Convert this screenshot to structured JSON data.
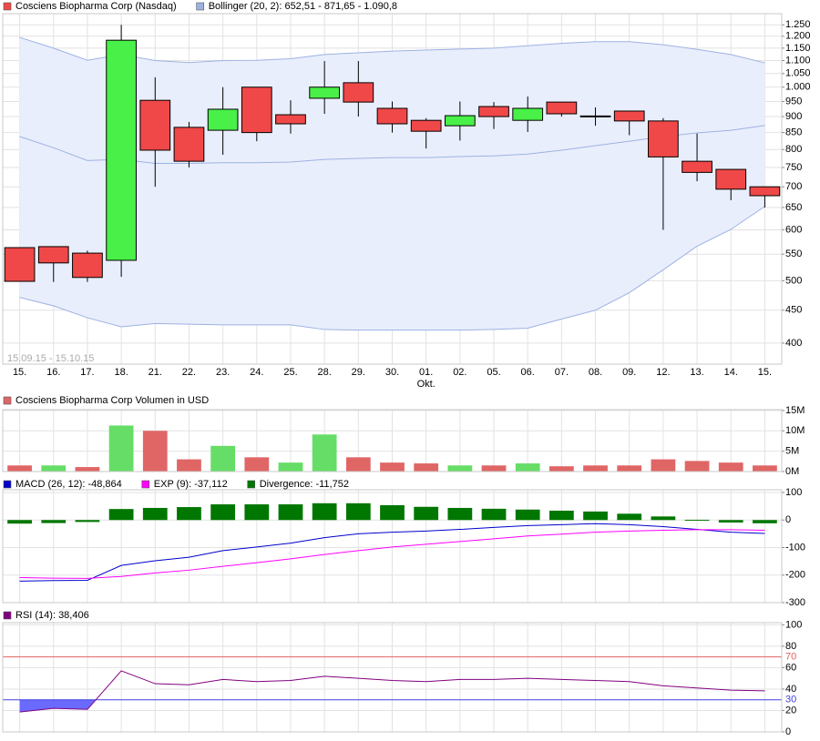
{
  "chart_data": [
    {
      "type": "candlestick",
      "log_scale": true,
      "grid": true,
      "period": "15.09.15 - 15.10.15",
      "categories": [
        "15.",
        "16.",
        "17.",
        "18.",
        "21.",
        "22.",
        "23.",
        "24.",
        "25.",
        "28.",
        "29.",
        "30.",
        "01.",
        "02.",
        "05.",
        "06.",
        "07.",
        "08.",
        "09.",
        "12.",
        "13.",
        "14.",
        "15."
      ],
      "annotations": [
        {
          "text": "Okt.",
          "at": "01."
        }
      ],
      "ylim": [
        371,
        1301
      ],
      "yticks": [
        400,
        450,
        500,
        550,
        600,
        650,
        700,
        750,
        800,
        850,
        900,
        950,
        {
          "value": 1000,
          "label": "1.000"
        },
        {
          "value": 1050,
          "label": "1.050"
        },
        {
          "value": 1100,
          "label": "1.100"
        },
        {
          "value": 1150,
          "label": "1.150"
        },
        {
          "value": 1200,
          "label": "1.200"
        },
        {
          "value": 1250,
          "label": "1.250"
        }
      ],
      "series": [
        {
          "name": "Cosciens Biopharma Corp (Nasdaq)",
          "color": "#f04848",
          "up_color": "#48f048",
          "open": [
            563,
            565,
            552,
            538,
            954,
            866,
            857,
            1000,
            906,
            961,
            1016,
            927,
            888,
            871,
            933,
            888,
            948,
            902,
            918,
            886,
            767,
            745,
            700
          ],
          "high": [
            563,
            565,
            557,
            1250,
            1036,
            883,
            1000,
            1000,
            954,
            1098,
            1098,
            950,
            895,
            950,
            948,
            967,
            948,
            930,
            918,
            895,
            847,
            745,
            700
          ],
          "low": [
            499,
            498,
            498,
            507,
            700,
            750,
            785,
            824,
            847,
            909,
            900,
            850,
            803,
            826,
            861,
            852,
            900,
            871,
            842,
            600,
            714,
            667,
            650
          ],
          "close": [
            499,
            533,
            506,
            1183,
            798,
            767,
            924,
            850,
            877,
            1000,
            948,
            877,
            854,
            903,
            900,
            927,
            909,
            899,
            886,
            779,
            737,
            694,
            678
          ]
        },
        {
          "name": "Bollinger (20, 2): 652,51 - 871,65 - 1.090,8",
          "color": "#9db2e2",
          "fill": "#e9eefc",
          "upper": [
            1195,
            1150,
            1101,
            1124,
            1100,
            1092,
            1100,
            1101,
            1107,
            1124,
            1131,
            1138,
            1142,
            1146,
            1150,
            1160,
            1170,
            1177,
            1177,
            1164,
            1145,
            1124,
            1090.8
          ],
          "middle": [
            838,
            805,
            769,
            772,
            761,
            761,
            763,
            763,
            765,
            772,
            775,
            777,
            777,
            780,
            782,
            787,
            798,
            811,
            824,
            838,
            849,
            857,
            871.65
          ],
          "lower": [
            471,
            457,
            438,
            424,
            429,
            428,
            427,
            427,
            427,
            420,
            419,
            419,
            419,
            419,
            420,
            422,
            436,
            450,
            479,
            520,
            566,
            601,
            652.51
          ]
        }
      ]
    },
    {
      "type": "volume",
      "grid": true,
      "ylim": [
        0,
        15.2
      ],
      "yticks": [
        {
          "value": 0,
          "label": "0M"
        },
        {
          "value": 5,
          "label": "5M"
        },
        {
          "value": 10,
          "label": "10M"
        },
        {
          "value": 15,
          "label": "15M"
        }
      ],
      "series": [
        {
          "name": "Cosciens Biopharma Corp Volumen in USD",
          "color": "#e06666",
          "up_color": "#66dd66",
          "values": [
            1.5,
            1.5,
            1.1,
            11.3,
            10,
            3,
            6.3,
            3.5,
            2.2,
            9.1,
            3.5,
            2.2,
            2,
            1.5,
            1.5,
            2,
            1.3,
            1.5,
            1.5,
            3,
            2.6,
            2.2,
            1.5
          ]
        }
      ]
    },
    {
      "type": "macd",
      "grid": true,
      "ylim": [
        -300,
        110
      ],
      "yticks": [
        -300,
        -200,
        -100,
        0,
        100
      ],
      "series": [
        {
          "name": "MACD (26, 12): -48,864",
          "color": "#0000cc",
          "values": [
            -222,
            -220,
            -219,
            -165,
            -148,
            -135,
            -111,
            -98,
            -84,
            -64,
            -50,
            -44,
            -40,
            -34,
            -27,
            -20,
            -17,
            -13,
            -17,
            -24,
            -34,
            -44,
            -48.864
          ]
        },
        {
          "name": "EXP (9): -37,112",
          "color": "#ff00ff",
          "values": [
            -209,
            -211,
            -212,
            -205,
            -192,
            -182,
            -168,
            -155,
            -141,
            -125,
            -111,
            -98,
            -88,
            -78,
            -68,
            -58,
            -51,
            -44,
            -40,
            -37,
            -35,
            -35,
            -37.112
          ]
        },
        {
          "name": "Divergence: -11,752",
          "color": "#007700",
          "bars": true,
          "values": [
            -13,
            -11,
            -7,
            40,
            44,
            47,
            57,
            57,
            57,
            61,
            61,
            54,
            48,
            44,
            41,
            38,
            34,
            31,
            23,
            13,
            1,
            -9,
            -11.752
          ]
        }
      ]
    },
    {
      "type": "rsi",
      "grid": true,
      "ylim": [
        0,
        102
      ],
      "yticks": [
        0,
        20,
        40,
        60,
        80,
        100
      ],
      "hlines": [
        {
          "value": 70,
          "color": "#e06060"
        },
        {
          "value": 30,
          "color": "#4040e0"
        }
      ],
      "fill_below_color": "#6a6aff",
      "series": [
        {
          "name": "RSI (14): 38,406",
          "color": "#800080",
          "values": [
            18.6,
            22,
            21,
            57,
            45,
            44,
            49,
            47,
            48,
            52,
            50,
            48,
            47,
            49,
            49,
            50,
            49,
            48,
            47,
            43,
            41,
            39,
            38.406
          ]
        }
      ]
    }
  ]
}
